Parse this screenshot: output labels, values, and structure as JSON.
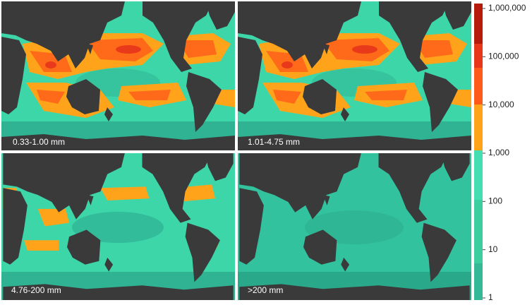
{
  "panels": [
    {
      "label": "0.33-1.00 mm"
    },
    {
      "label": "1.01-4.75 mm"
    },
    {
      "label": "4.76-200 mm"
    },
    {
      "label": ">200 mm"
    }
  ],
  "colorbar": {
    "scale": "log",
    "ticks": [
      {
        "value": 1000000,
        "label": "1,000,000"
      },
      {
        "value": 100000,
        "label": "100,000"
      },
      {
        "value": 10000,
        "label": "10,000"
      },
      {
        "value": 1000,
        "label": "1,000"
      },
      {
        "value": 100,
        "label": "100"
      },
      {
        "value": 10,
        "label": "10"
      },
      {
        "value": 1,
        "label": "1"
      }
    ]
  }
}
